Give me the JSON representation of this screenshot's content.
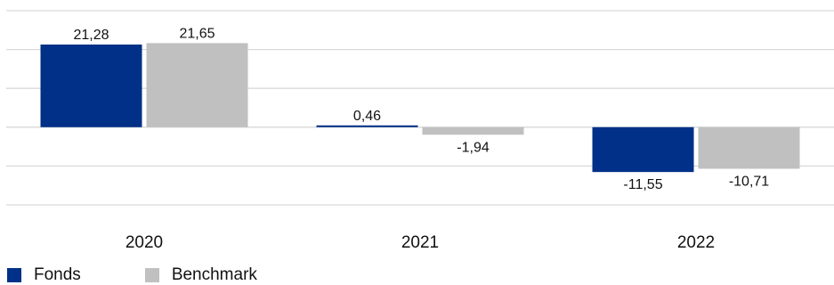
{
  "chart_data": {
    "type": "bar",
    "categories": [
      "2020",
      "2021",
      "2022"
    ],
    "series": [
      {
        "name": "Fonds",
        "color": "#003087",
        "values": [
          21.28,
          0.46,
          -11.55
        ],
        "labels": [
          "21,28",
          "0,46",
          "-11,55"
        ]
      },
      {
        "name": "Benchmark",
        "color": "#c0c0c0",
        "values": [
          21.65,
          -1.94,
          -10.71
        ],
        "labels": [
          "21,65",
          "-1,94",
          "-10,71"
        ]
      }
    ],
    "ylim": [
      -20,
      30
    ],
    "grid": true,
    "legend_position": "bottom-left"
  }
}
